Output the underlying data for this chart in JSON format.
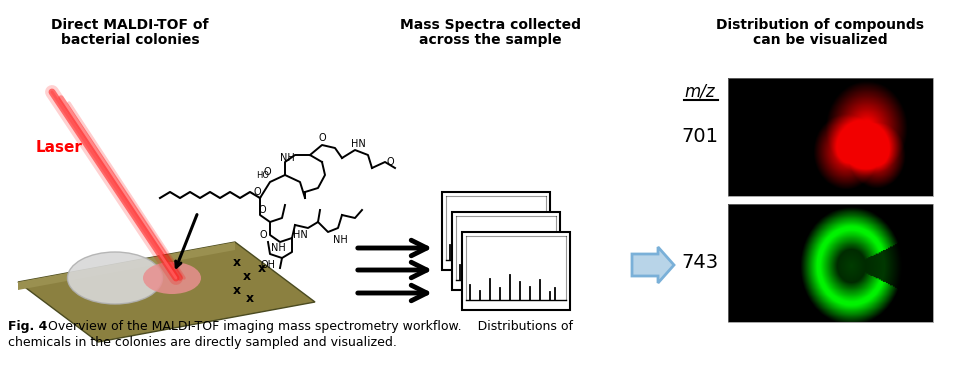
{
  "fig_width": 9.6,
  "fig_height": 3.79,
  "dpi": 100,
  "bg_color": "#ffffff",
  "title1": "Direct MALDI-TOF of",
  "title2": "bacterial colonies",
  "title3": "Mass Spectra collected",
  "title4": "across the sample",
  "title5": "Distribution of compounds",
  "title6": "can be visualized",
  "laser_label": "Laser",
  "mz_label": "m/z",
  "label_701": "701",
  "label_743": "743",
  "caption_bold": "Fig. 4",
  "caption_rest": "  Overview of the MALDI-TOF imaging mass spectrometry workflow.    Distributions of\nchemicals in the colonies are directly sampled and visualized.",
  "plate_color": "#8b8040",
  "colony_color": "#d8d8d8",
  "spot_color": "#e89090",
  "laser_color": "#ff0000",
  "arrow_color": "#000000",
  "blue_arrow_fill": "#b8d4e8",
  "blue_arrow_edge": "#7ab0d8"
}
